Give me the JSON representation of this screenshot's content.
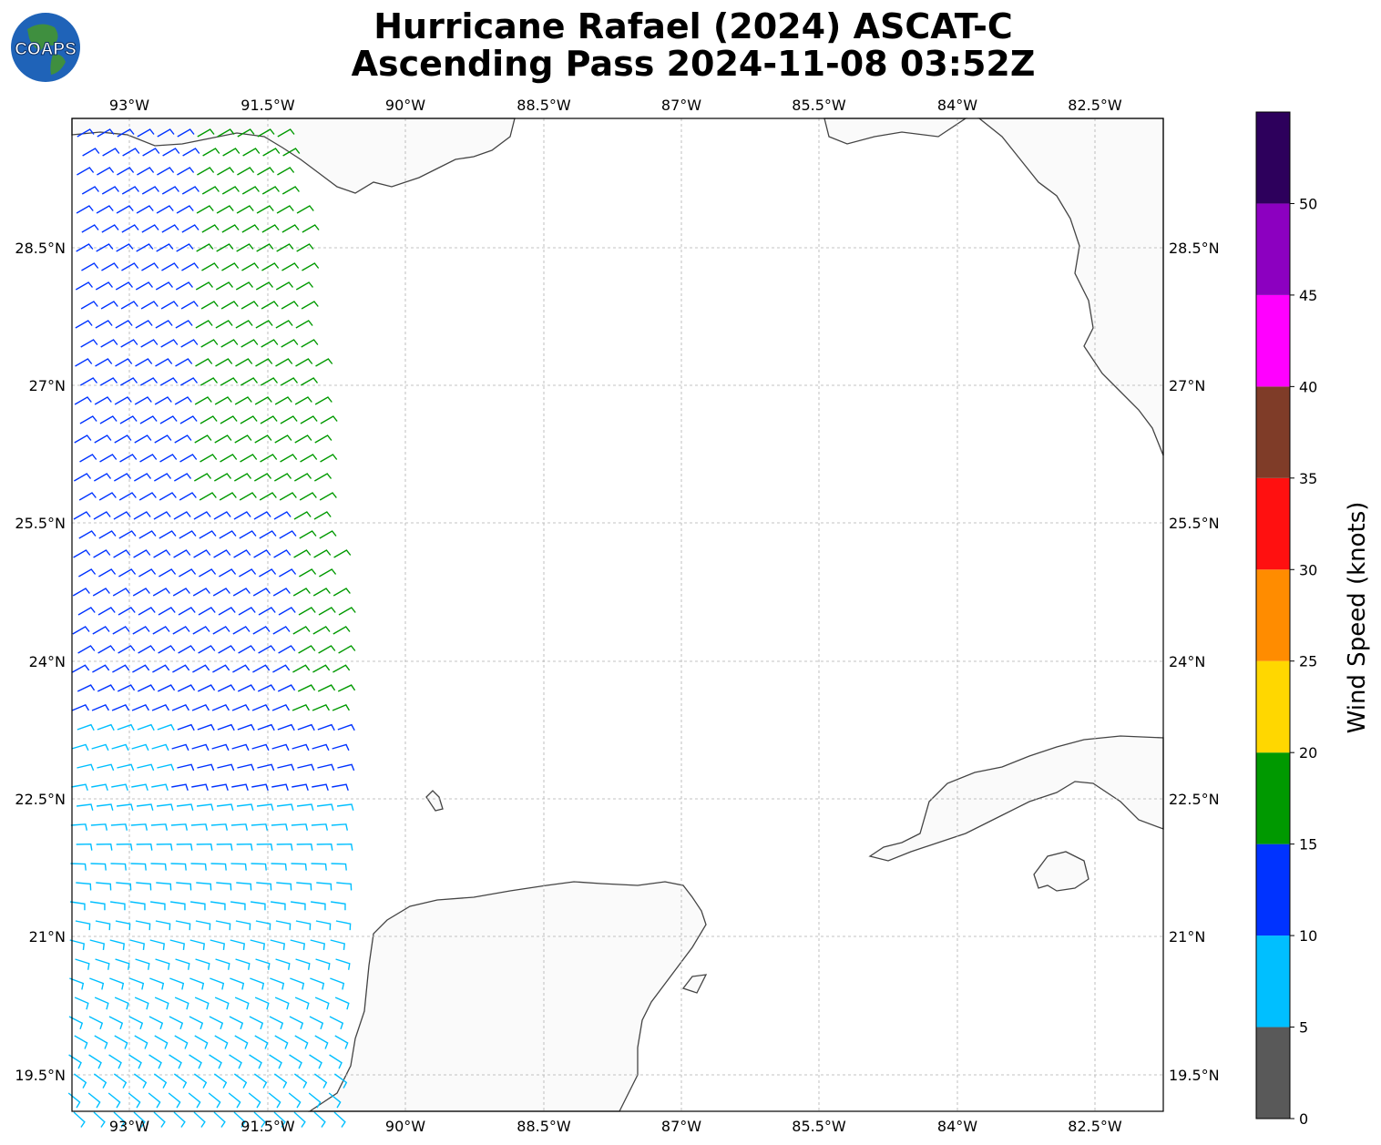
{
  "title": {
    "line1": "Hurricane Rafael (2024) ASCAT-C",
    "line2": "Ascending Pass 2024-11-08 03:52Z"
  },
  "logo": {
    "text": "COAPS",
    "icon": "globe-icon"
  },
  "map": {
    "lon_ticks": [
      "93°W",
      "91.5°W",
      "90°W",
      "88.5°W",
      "87°W",
      "85.5°W",
      "84°W",
      "82.5°W"
    ],
    "lat_ticks": [
      "28.5°N",
      "27°N",
      "25.5°N",
      "24°N",
      "22.5°N",
      "21°N",
      "19.5°N"
    ],
    "land_labels": [],
    "gridlines": true
  },
  "colorbar": {
    "label": "Wind Speed (knots)",
    "ticks": [
      "0",
      "5",
      "10",
      "15",
      "20",
      "25",
      "30",
      "35",
      "40",
      "45",
      "50"
    ],
    "colors": [
      "#595959",
      "#00bfff",
      "#0033ff",
      "#009900",
      "#ffd700",
      "#ff8c00",
      "#ff1010",
      "#7f3c28",
      "#ff00ff",
      "#8c00c0",
      "#2d005c"
    ]
  }
}
